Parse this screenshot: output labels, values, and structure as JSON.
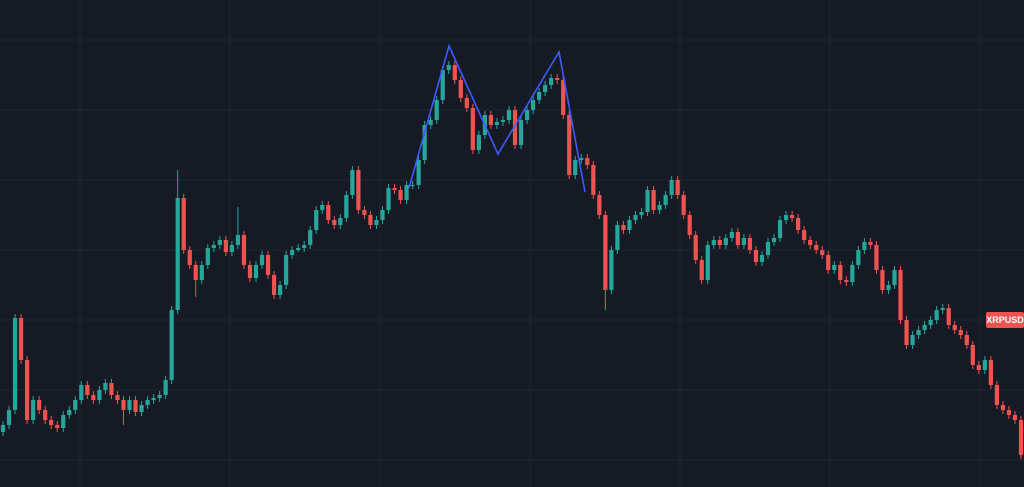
{
  "chart_data": {
    "type": "candlestick",
    "symbol": "XRPUSD",
    "up_color": "#26a69a",
    "down_color": "#ef5350",
    "ylim": [
      0,
      487
    ],
    "ohlc": [
      [
        55,
        66,
        51,
        62
      ],
      [
        62,
        81,
        58,
        77
      ],
      [
        77,
        173,
        73,
        169
      ],
      [
        169,
        173,
        123,
        127
      ],
      [
        127,
        131,
        63,
        67
      ],
      [
        67,
        91,
        63,
        87
      ],
      [
        87,
        91,
        73,
        77
      ],
      [
        77,
        81,
        63,
        67
      ],
      [
        67,
        71,
        58,
        62
      ],
      [
        62,
        66,
        55,
        59
      ],
      [
        59,
        76,
        55,
        72
      ],
      [
        72,
        81,
        68,
        77
      ],
      [
        77,
        91,
        73,
        87
      ],
      [
        87,
        106,
        83,
        102
      ],
      [
        102,
        106,
        88,
        92
      ],
      [
        92,
        96,
        83,
        87
      ],
      [
        87,
        101,
        83,
        97
      ],
      [
        97,
        108,
        93,
        104
      ],
      [
        104,
        108,
        88,
        92
      ],
      [
        92,
        96,
        83,
        87
      ],
      [
        87,
        91,
        62,
        77
      ],
      [
        77,
        91,
        73,
        87
      ],
      [
        87,
        91,
        71,
        75
      ],
      [
        75,
        86,
        71,
        82
      ],
      [
        82,
        91,
        78,
        87
      ],
      [
        87,
        93,
        83,
        89
      ],
      [
        89,
        96,
        85,
        92
      ],
      [
        92,
        111,
        88,
        107
      ],
      [
        107,
        181,
        103,
        177
      ],
      [
        177,
        317,
        173,
        289
      ],
      [
        289,
        293,
        233,
        237
      ],
      [
        237,
        241,
        218,
        222
      ],
      [
        222,
        226,
        190,
        207
      ],
      [
        207,
        226,
        203,
        222
      ],
      [
        222,
        243,
        218,
        239
      ],
      [
        239,
        246,
        235,
        242
      ],
      [
        242,
        251,
        238,
        247
      ],
      [
        247,
        251,
        231,
        235
      ],
      [
        235,
        246,
        231,
        242
      ],
      [
        242,
        280,
        238,
        252
      ],
      [
        252,
        256,
        218,
        222
      ],
      [
        222,
        226,
        205,
        209
      ],
      [
        209,
        226,
        205,
        222
      ],
      [
        222,
        236,
        218,
        232
      ],
      [
        232,
        236,
        208,
        212
      ],
      [
        212,
        216,
        188,
        192
      ],
      [
        192,
        206,
        188,
        202
      ],
      [
        202,
        236,
        198,
        232
      ],
      [
        232,
        241,
        228,
        237
      ],
      [
        237,
        243,
        235,
        239
      ],
      [
        239,
        246,
        235,
        242
      ],
      [
        242,
        261,
        238,
        257
      ],
      [
        257,
        281,
        253,
        277
      ],
      [
        277,
        286,
        273,
        282
      ],
      [
        282,
        286,
        263,
        267
      ],
      [
        267,
        271,
        258,
        262
      ],
      [
        262,
        273,
        258,
        269
      ],
      [
        269,
        296,
        265,
        292
      ],
      [
        292,
        321,
        288,
        317
      ],
      [
        317,
        321,
        273,
        277
      ],
      [
        277,
        281,
        268,
        272
      ],
      [
        272,
        276,
        258,
        262
      ],
      [
        262,
        271,
        258,
        267
      ],
      [
        267,
        281,
        263,
        277
      ],
      [
        277,
        303,
        273,
        299
      ],
      [
        299,
        303,
        293,
        297
      ],
      [
        297,
        301,
        283,
        287
      ],
      [
        287,
        306,
        283,
        302
      ],
      [
        302,
        306,
        298,
        302
      ],
      [
        302,
        331,
        298,
        327
      ],
      [
        327,
        366,
        323,
        362
      ],
      [
        362,
        371,
        358,
        367
      ],
      [
        367,
        391,
        363,
        387
      ],
      [
        387,
        421,
        383,
        417
      ],
      [
        417,
        426,
        413,
        422
      ],
      [
        422,
        426,
        403,
        407
      ],
      [
        407,
        411,
        385,
        389
      ],
      [
        389,
        393,
        375,
        379
      ],
      [
        379,
        383,
        333,
        337
      ],
      [
        337,
        356,
        333,
        352
      ],
      [
        352,
        376,
        348,
        372
      ],
      [
        372,
        376,
        358,
        362
      ],
      [
        362,
        369,
        358,
        365
      ],
      [
        365,
        371,
        361,
        367
      ],
      [
        367,
        381,
        363,
        377
      ],
      [
        377,
        381,
        338,
        342
      ],
      [
        342,
        371,
        338,
        367
      ],
      [
        367,
        381,
        363,
        377
      ],
      [
        377,
        391,
        373,
        387
      ],
      [
        387,
        399,
        383,
        395
      ],
      [
        395,
        406,
        391,
        402
      ],
      [
        402,
        413,
        398,
        409
      ],
      [
        409,
        413,
        403,
        407
      ],
      [
        407,
        411,
        368,
        372
      ],
      [
        372,
        376,
        308,
        312
      ],
      [
        312,
        331,
        308,
        327
      ],
      [
        327,
        333,
        323,
        329
      ],
      [
        329,
        333,
        318,
        322
      ],
      [
        322,
        326,
        288,
        292
      ],
      [
        292,
        296,
        268,
        272
      ],
      [
        272,
        276,
        177,
        197
      ],
      [
        197,
        241,
        193,
        237
      ],
      [
        237,
        266,
        233,
        262
      ],
      [
        262,
        266,
        253,
        257
      ],
      [
        257,
        271,
        253,
        267
      ],
      [
        267,
        276,
        263,
        272
      ],
      [
        272,
        279,
        268,
        275
      ],
      [
        275,
        301,
        271,
        297
      ],
      [
        297,
        301,
        273,
        277
      ],
      [
        277,
        286,
        273,
        282
      ],
      [
        282,
        296,
        278,
        292
      ],
      [
        292,
        311,
        288,
        307
      ],
      [
        307,
        311,
        288,
        292
      ],
      [
        292,
        296,
        268,
        272
      ],
      [
        272,
        276,
        248,
        252
      ],
      [
        252,
        256,
        223,
        227
      ],
      [
        227,
        231,
        203,
        207
      ],
      [
        207,
        246,
        203,
        242
      ],
      [
        242,
        251,
        238,
        247
      ],
      [
        247,
        251,
        238,
        242
      ],
      [
        242,
        253,
        238,
        249
      ],
      [
        249,
        259,
        245,
        255
      ],
      [
        255,
        259,
        238,
        242
      ],
      [
        242,
        253,
        238,
        249
      ],
      [
        249,
        253,
        233,
        237
      ],
      [
        237,
        241,
        221,
        225
      ],
      [
        225,
        236,
        221,
        232
      ],
      [
        232,
        249,
        228,
        245
      ],
      [
        245,
        253,
        241,
        249
      ],
      [
        249,
        271,
        245,
        267
      ],
      [
        267,
        276,
        263,
        272
      ],
      [
        272,
        276,
        265,
        269
      ],
      [
        269,
        273,
        253,
        257
      ],
      [
        257,
        261,
        243,
        247
      ],
      [
        247,
        251,
        238,
        242
      ],
      [
        242,
        246,
        233,
        237
      ],
      [
        237,
        241,
        228,
        232
      ],
      [
        232,
        236,
        213,
        217
      ],
      [
        217,
        226,
        213,
        222
      ],
      [
        222,
        226,
        203,
        207
      ],
      [
        207,
        211,
        201,
        205
      ],
      [
        205,
        226,
        201,
        222
      ],
      [
        222,
        241,
        218,
        237
      ],
      [
        237,
        249,
        233,
        245
      ],
      [
        245,
        249,
        238,
        242
      ],
      [
        242,
        246,
        213,
        217
      ],
      [
        217,
        221,
        193,
        197
      ],
      [
        197,
        206,
        193,
        202
      ],
      [
        202,
        221,
        198,
        217
      ],
      [
        217,
        221,
        163,
        167
      ],
      [
        167,
        171,
        138,
        142
      ],
      [
        142,
        156,
        138,
        152
      ],
      [
        152,
        161,
        148,
        157
      ],
      [
        157,
        166,
        153,
        162
      ],
      [
        162,
        171,
        158,
        167
      ],
      [
        167,
        181,
        163,
        177
      ],
      [
        177,
        183,
        173,
        179
      ],
      [
        179,
        183,
        158,
        162
      ],
      [
        162,
        166,
        153,
        157
      ],
      [
        157,
        161,
        148,
        152
      ],
      [
        152,
        156,
        138,
        142
      ],
      [
        142,
        146,
        118,
        122
      ],
      [
        122,
        126,
        113,
        117
      ],
      [
        117,
        131,
        113,
        127
      ],
      [
        127,
        131,
        98,
        102
      ],
      [
        102,
        106,
        78,
        82
      ],
      [
        82,
        86,
        73,
        77
      ],
      [
        77,
        81,
        68,
        72
      ],
      [
        72,
        76,
        63,
        67
      ],
      [
        67,
        71,
        28,
        32
      ]
    ]
  }
}
